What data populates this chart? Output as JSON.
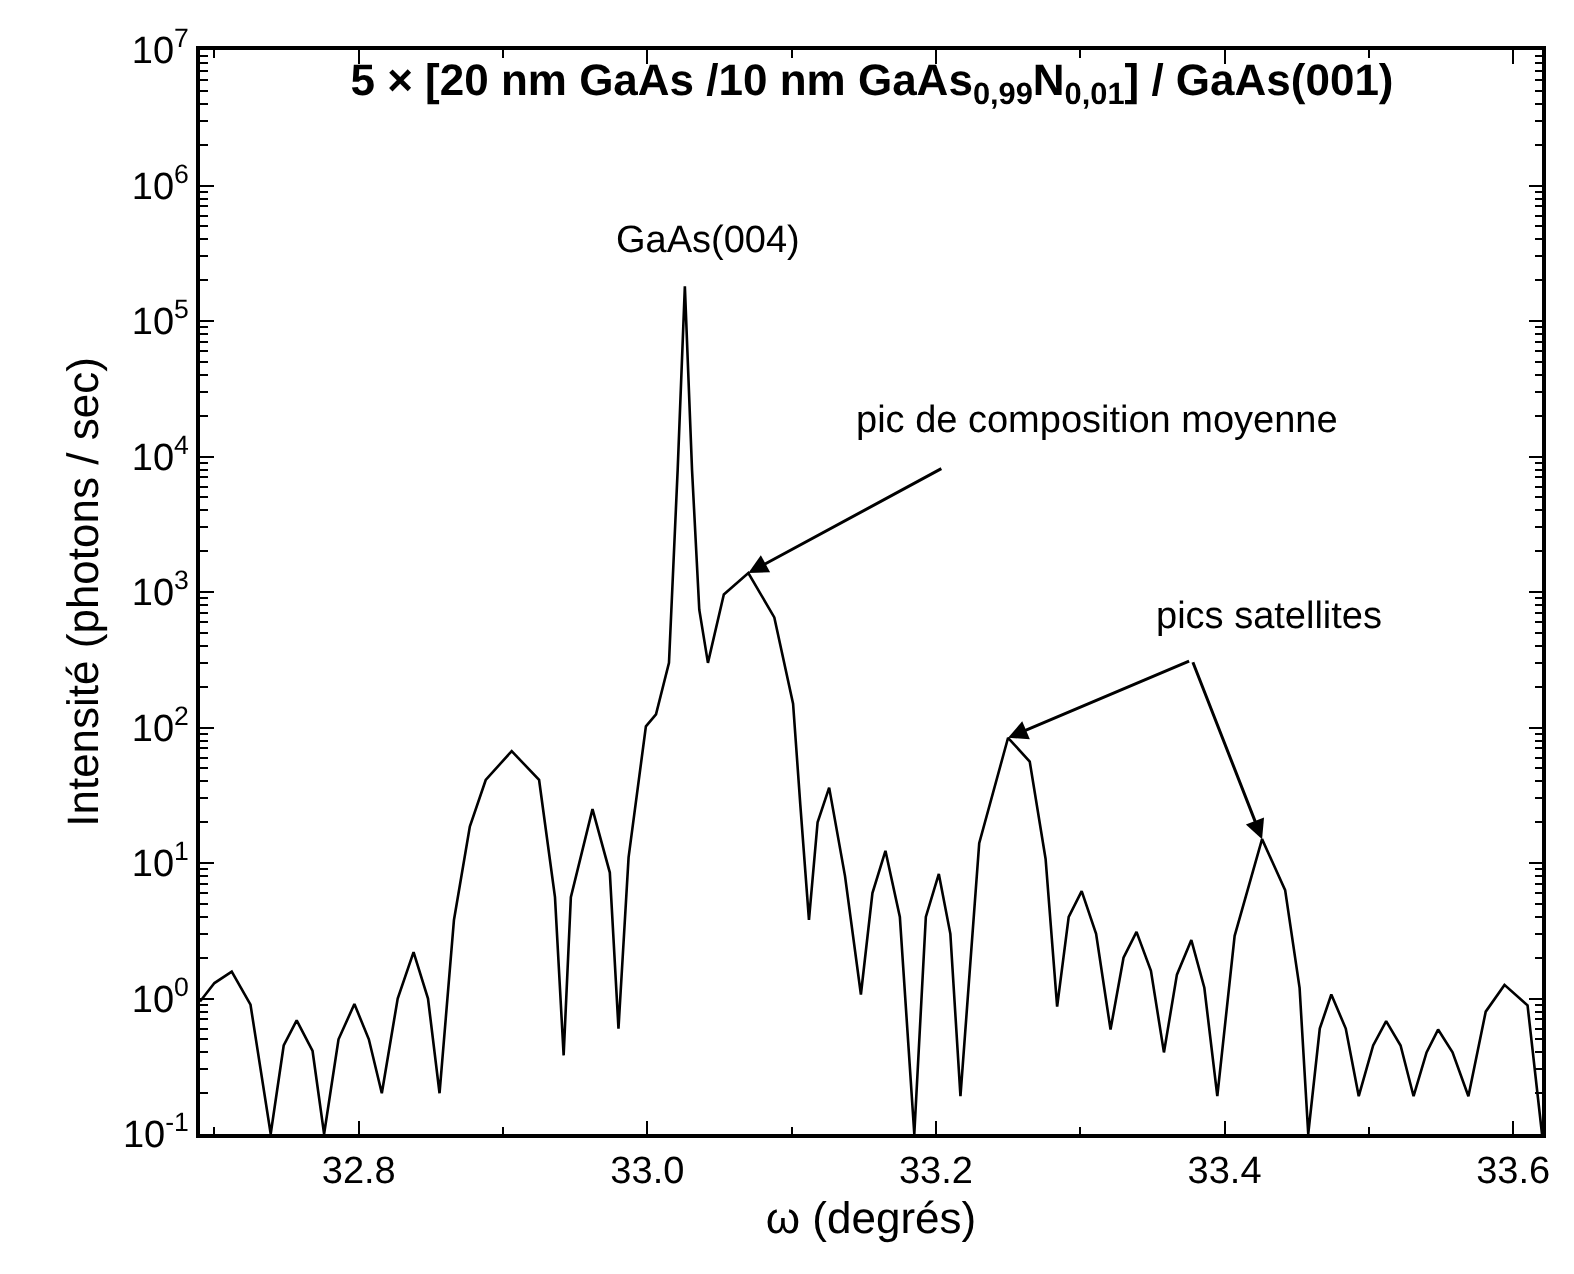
{
  "chart_data": {
    "type": "line",
    "title": "5 × [20 nm GaAs /10 nm GaAs$_{0,99}$N$_{0,01}$] / GaAs(001)",
    "xlabel": "ω (degrés)",
    "ylabel": "Intensité (photons / sec)",
    "log": "y",
    "marker": "none",
    "line_style": "solid",
    "xlim": [
      32.69,
      33.62
    ],
    "xticks": [
      32.8,
      {
        "value": 33.0,
        "label": "33.0"
      },
      33.2,
      33.4,
      33.6
    ],
    "ylim": [
      0.1,
      10000000
    ],
    "yticks": [
      {
        "value": 0.1,
        "label": "10$^{-1}$"
      },
      {
        "value": 1,
        "label": "10$^{0}$"
      },
      {
        "value": 10,
        "label": "10$^{1}$"
      },
      {
        "value": 100,
        "label": "10$^{2}$"
      },
      {
        "value": 1000,
        "label": "10$^{3}$"
      },
      {
        "value": 10000,
        "label": "10$^{4}$"
      },
      {
        "value": 100000,
        "label": "10$^{5}$"
      },
      {
        "value": 1000000,
        "label": "10$^{6}$"
      },
      {
        "value": 10000000,
        "label": "10$^{7}$"
      }
    ],
    "x": [
      32.69,
      32.7,
      32.712,
      32.725,
      32.739,
      32.748,
      32.757,
      32.768,
      32.776,
      32.786,
      32.797,
      32.807,
      32.816,
      32.827,
      32.838,
      32.848,
      32.856,
      32.866,
      32.877,
      32.888,
      32.906,
      32.925,
      32.936,
      32.942,
      32.947,
      32.962,
      32.974,
      32.98,
      32.987,
      32.999,
      33.006,
      33.015,
      33.021,
      33.026,
      33.031,
      33.036,
      33.042,
      33.053,
      33.07,
      33.088,
      33.101,
      33.106,
      33.112,
      33.118,
      33.126,
      33.137,
      33.148,
      33.156,
      33.165,
      33.175,
      33.185,
      33.193,
      33.202,
      33.21,
      33.217,
      33.23,
      33.25,
      33.265,
      33.276,
      33.284,
      33.292,
      33.301,
      33.311,
      33.321,
      33.33,
      33.339,
      33.349,
      33.358,
      33.367,
      33.377,
      33.386,
      33.395,
      33.407,
      33.426,
      33.442,
      33.452,
      33.458,
      33.466,
      33.474,
      33.484,
      33.493,
      33.503,
      33.512,
      33.522,
      33.531,
      33.54,
      33.548,
      33.558,
      33.569,
      33.581,
      33.594,
      33.61,
      33.62
    ],
    "series": [
      {
        "color": "#000000",
        "values": [
          0.95,
          1.3,
          1.58,
          0.9,
          0.1,
          0.45,
          0.69,
          0.41,
          0.1,
          0.5,
          0.91,
          0.5,
          0.2,
          1.0,
          2.2,
          1.0,
          0.2,
          3.8,
          18.6,
          41,
          67,
          41,
          5.6,
          0.38,
          5.6,
          25,
          8.5,
          0.6,
          11,
          102,
          125,
          300,
          7900,
          180000,
          7900,
          740,
          300,
          960,
          1380,
          650,
          150,
          27,
          3.8,
          20,
          36,
          8,
          1.07,
          6,
          12.3,
          4,
          0.1,
          4,
          8.3,
          3,
          0.19,
          14,
          84,
          56,
          10.7,
          0.87,
          4,
          6.2,
          3,
          0.59,
          2,
          3.1,
          1.6,
          0.4,
          1.5,
          2.7,
          1.2,
          0.19,
          2.9,
          15,
          6.3,
          1.2,
          0.1,
          0.6,
          1.07,
          0.6,
          0.19,
          0.45,
          0.68,
          0.45,
          0.19,
          0.4,
          0.59,
          0.4,
          0.19,
          0.8,
          1.26,
          0.89,
          0.1
        ]
      }
    ],
    "annotations": [
      {
        "text": "GaAs(004)",
        "x": 33.026,
        "y": 180000
      },
      {
        "text": "pic de composition moyenne",
        "x": 33.07,
        "y": 1380
      },
      {
        "text": "pics satellites",
        "x": 33.25,
        "y": 84
      }
    ]
  }
}
